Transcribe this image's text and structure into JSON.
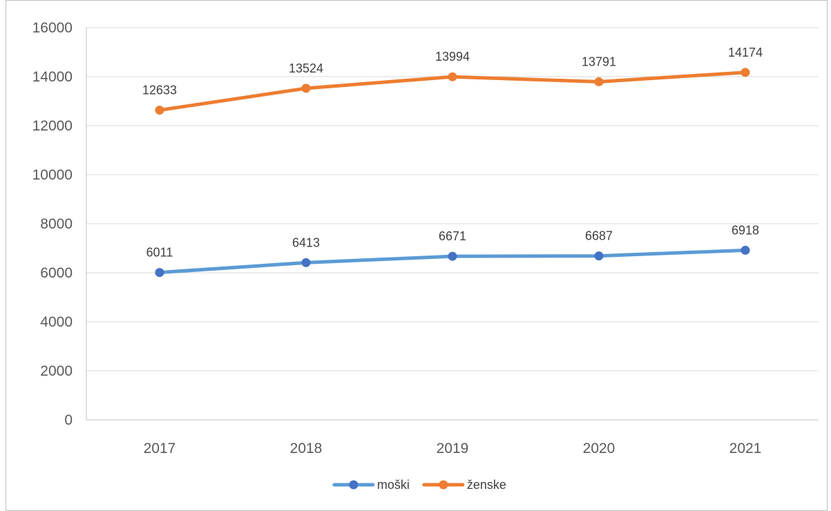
{
  "chart_data": {
    "type": "line",
    "categories": [
      "2017",
      "2018",
      "2019",
      "2020",
      "2021"
    ],
    "series": [
      {
        "name": "moški",
        "values": [
          6011,
          6413,
          6671,
          6687,
          6918
        ],
        "color": "#5b9bd5",
        "marker_color": "#4472c4"
      },
      {
        "name": "ženske",
        "values": [
          12633,
          13524,
          13994,
          13791,
          14174
        ],
        "color": "#ed7d31",
        "marker_color": "#ed7d31"
      }
    ],
    "ylim": [
      0,
      16000
    ],
    "yticks": [
      0,
      2000,
      4000,
      6000,
      8000,
      10000,
      12000,
      14000,
      16000
    ],
    "grid": true,
    "legend": "bottom",
    "data_labels": true,
    "title": "",
    "xlabel": "",
    "ylabel": ""
  }
}
